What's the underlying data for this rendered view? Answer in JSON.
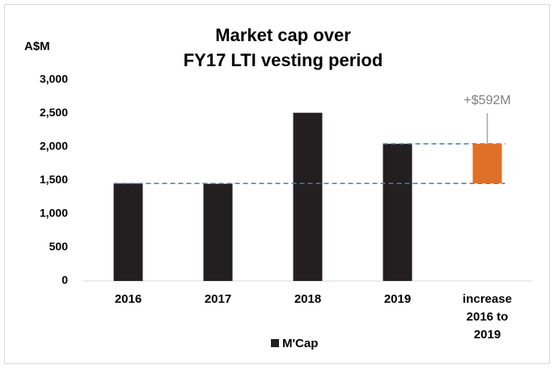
{
  "chart_data": {
    "type": "bar",
    "title": "Market cap over\nFY17 LTI vesting period",
    "y_axis_label": "A$M",
    "categories": [
      "2016",
      "2017",
      "2018",
      "2019",
      "increase\n2016 to\n2019"
    ],
    "series": [
      {
        "name": "M'Cap",
        "color": "#231f20",
        "values": [
          1455,
          1450,
          2510,
          2047,
          null
        ]
      }
    ],
    "increase": {
      "value": 592,
      "label": "+$592M",
      "color": "#e07028"
    },
    "ylim": [
      0,
      3000
    ],
    "yticks": [
      0,
      500,
      {
        "value": 1000,
        "label": "1,000"
      },
      {
        "value": 1500,
        "label": "1,500"
      },
      {
        "value": 2000,
        "label": "2,000"
      },
      {
        "value": 2500,
        "label": "2,500"
      },
      {
        "value": 3000,
        "label": "3,000"
      }
    ],
    "grid": false,
    "legend": "bottom"
  }
}
